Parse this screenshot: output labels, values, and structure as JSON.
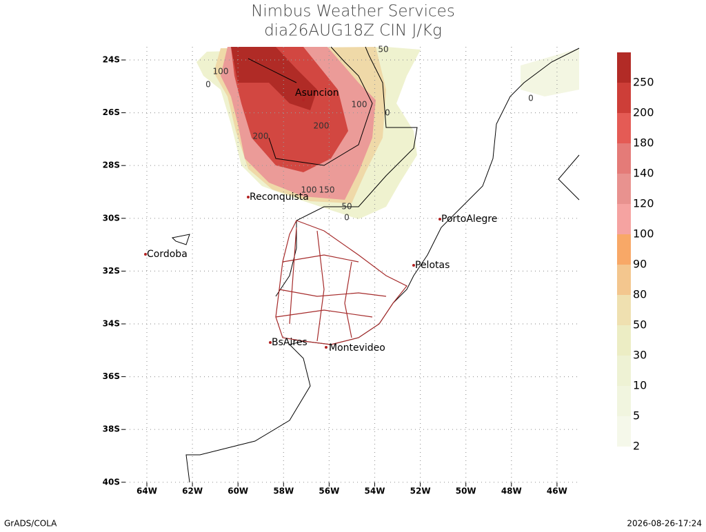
{
  "header": {
    "title": "Nimbus Weather Services",
    "subtitle": "dia26AUG18Z CIN J/Kg"
  },
  "lat_labels": [
    "24S",
    "26S",
    "28S",
    "30S",
    "32S",
    "34S",
    "36S",
    "38S",
    "40S"
  ],
  "lon_labels": [
    "64W",
    "62W",
    "60W",
    "58W",
    "56W",
    "54W",
    "52W",
    "50W",
    "48W",
    "46W"
  ],
  "cities": [
    "Asuncion",
    "Reconquista",
    "PortoAlegre",
    "Cordoba",
    "Pelotas",
    "BsAires",
    "Montevideo"
  ],
  "contour_labels": [
    "50",
    "100",
    "0",
    "100",
    "0",
    "200",
    "200",
    "0",
    "100",
    "150",
    "50",
    "0"
  ],
  "colorbar": {
    "labels": [
      "2",
      "5",
      "10",
      "30",
      "50",
      "80",
      "90",
      "100",
      "120",
      "140",
      "180",
      "200",
      "250"
    ],
    "colors": [
      "#f5f8ea",
      "#f1f5df",
      "#eef2d4",
      "#ecedc4",
      "#efe0b0",
      "#f3c68e",
      "#f8a867",
      "#f5a3a1",
      "#e8928f",
      "#e47b78",
      "#e45b55",
      "#cd3e38",
      "#b22b26"
    ]
  },
  "footer": {
    "left": "GrADS/COLA",
    "right": "2026-08-26-17:24"
  }
}
